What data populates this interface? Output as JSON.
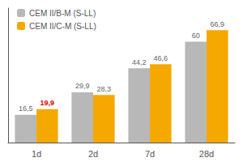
{
  "chart_data": {
    "type": "bar",
    "categories": [
      "1d",
      "2d",
      "7d",
      "28d"
    ],
    "series": [
      {
        "name": "CEM II/B-M (S-LL)",
        "color": "#b8b8b8",
        "values": [
          16.5,
          29.9,
          44.2,
          60
        ],
        "value_labels": [
          "16,5",
          "29,9",
          "44,2",
          "60"
        ]
      },
      {
        "name": "CEM II/C-M (S-LL)",
        "color": "#f5a800",
        "values": [
          19.9,
          28.3,
          46.6,
          66.9
        ],
        "value_labels": [
          "19,9",
          "28,3",
          "46,6",
          "66,9"
        ]
      }
    ],
    "ylim": [
      0,
      80
    ],
    "grid": false,
    "legend": "upper left",
    "data_labels": true,
    "tick_labels": "x"
  }
}
